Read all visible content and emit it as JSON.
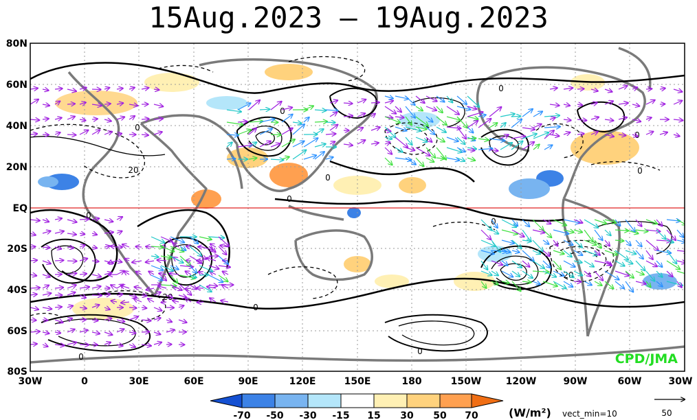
{
  "title": "15Aug.2023 – 19Aug.2023",
  "lat_labels": [
    "80N",
    "60N",
    "40N",
    "20N",
    "EQ",
    "20S",
    "40S",
    "60S",
    "80S"
  ],
  "lon_labels": [
    "30W",
    "0",
    "30E",
    "60E",
    "90E",
    "120E",
    "150E",
    "180",
    "150W",
    "120W",
    "90W",
    "60W",
    "30W"
  ],
  "legend": {
    "ticks": [
      "-70",
      "-50",
      "-30",
      "-15",
      "15",
      "30",
      "50",
      "70"
    ],
    "colors": [
      "#1450d2",
      "#3c82e6",
      "#78b4f0",
      "#b4e6fa",
      "#ffffff",
      "#fff0b4",
      "#ffd27d",
      "#ffa050",
      "#f06e14"
    ],
    "unit": "(W/m²)",
    "vect_min": "vect_min=10",
    "ref_vector": "50"
  },
  "credit": "CPD/JMA",
  "contour_labels": [
    "0",
    "0",
    "0",
    "0",
    "0",
    "0",
    "0",
    "0",
    "0",
    "0",
    "0",
    "0",
    "20",
    "20",
    "20"
  ],
  "colors": {
    "equator": "#e02020",
    "coast": "#7a7a7a",
    "vector_main": "#a020e0",
    "vector_strong_1": "#2a90ff",
    "vector_strong_2": "#20c8c8",
    "vector_strong_3": "#40e040"
  }
}
